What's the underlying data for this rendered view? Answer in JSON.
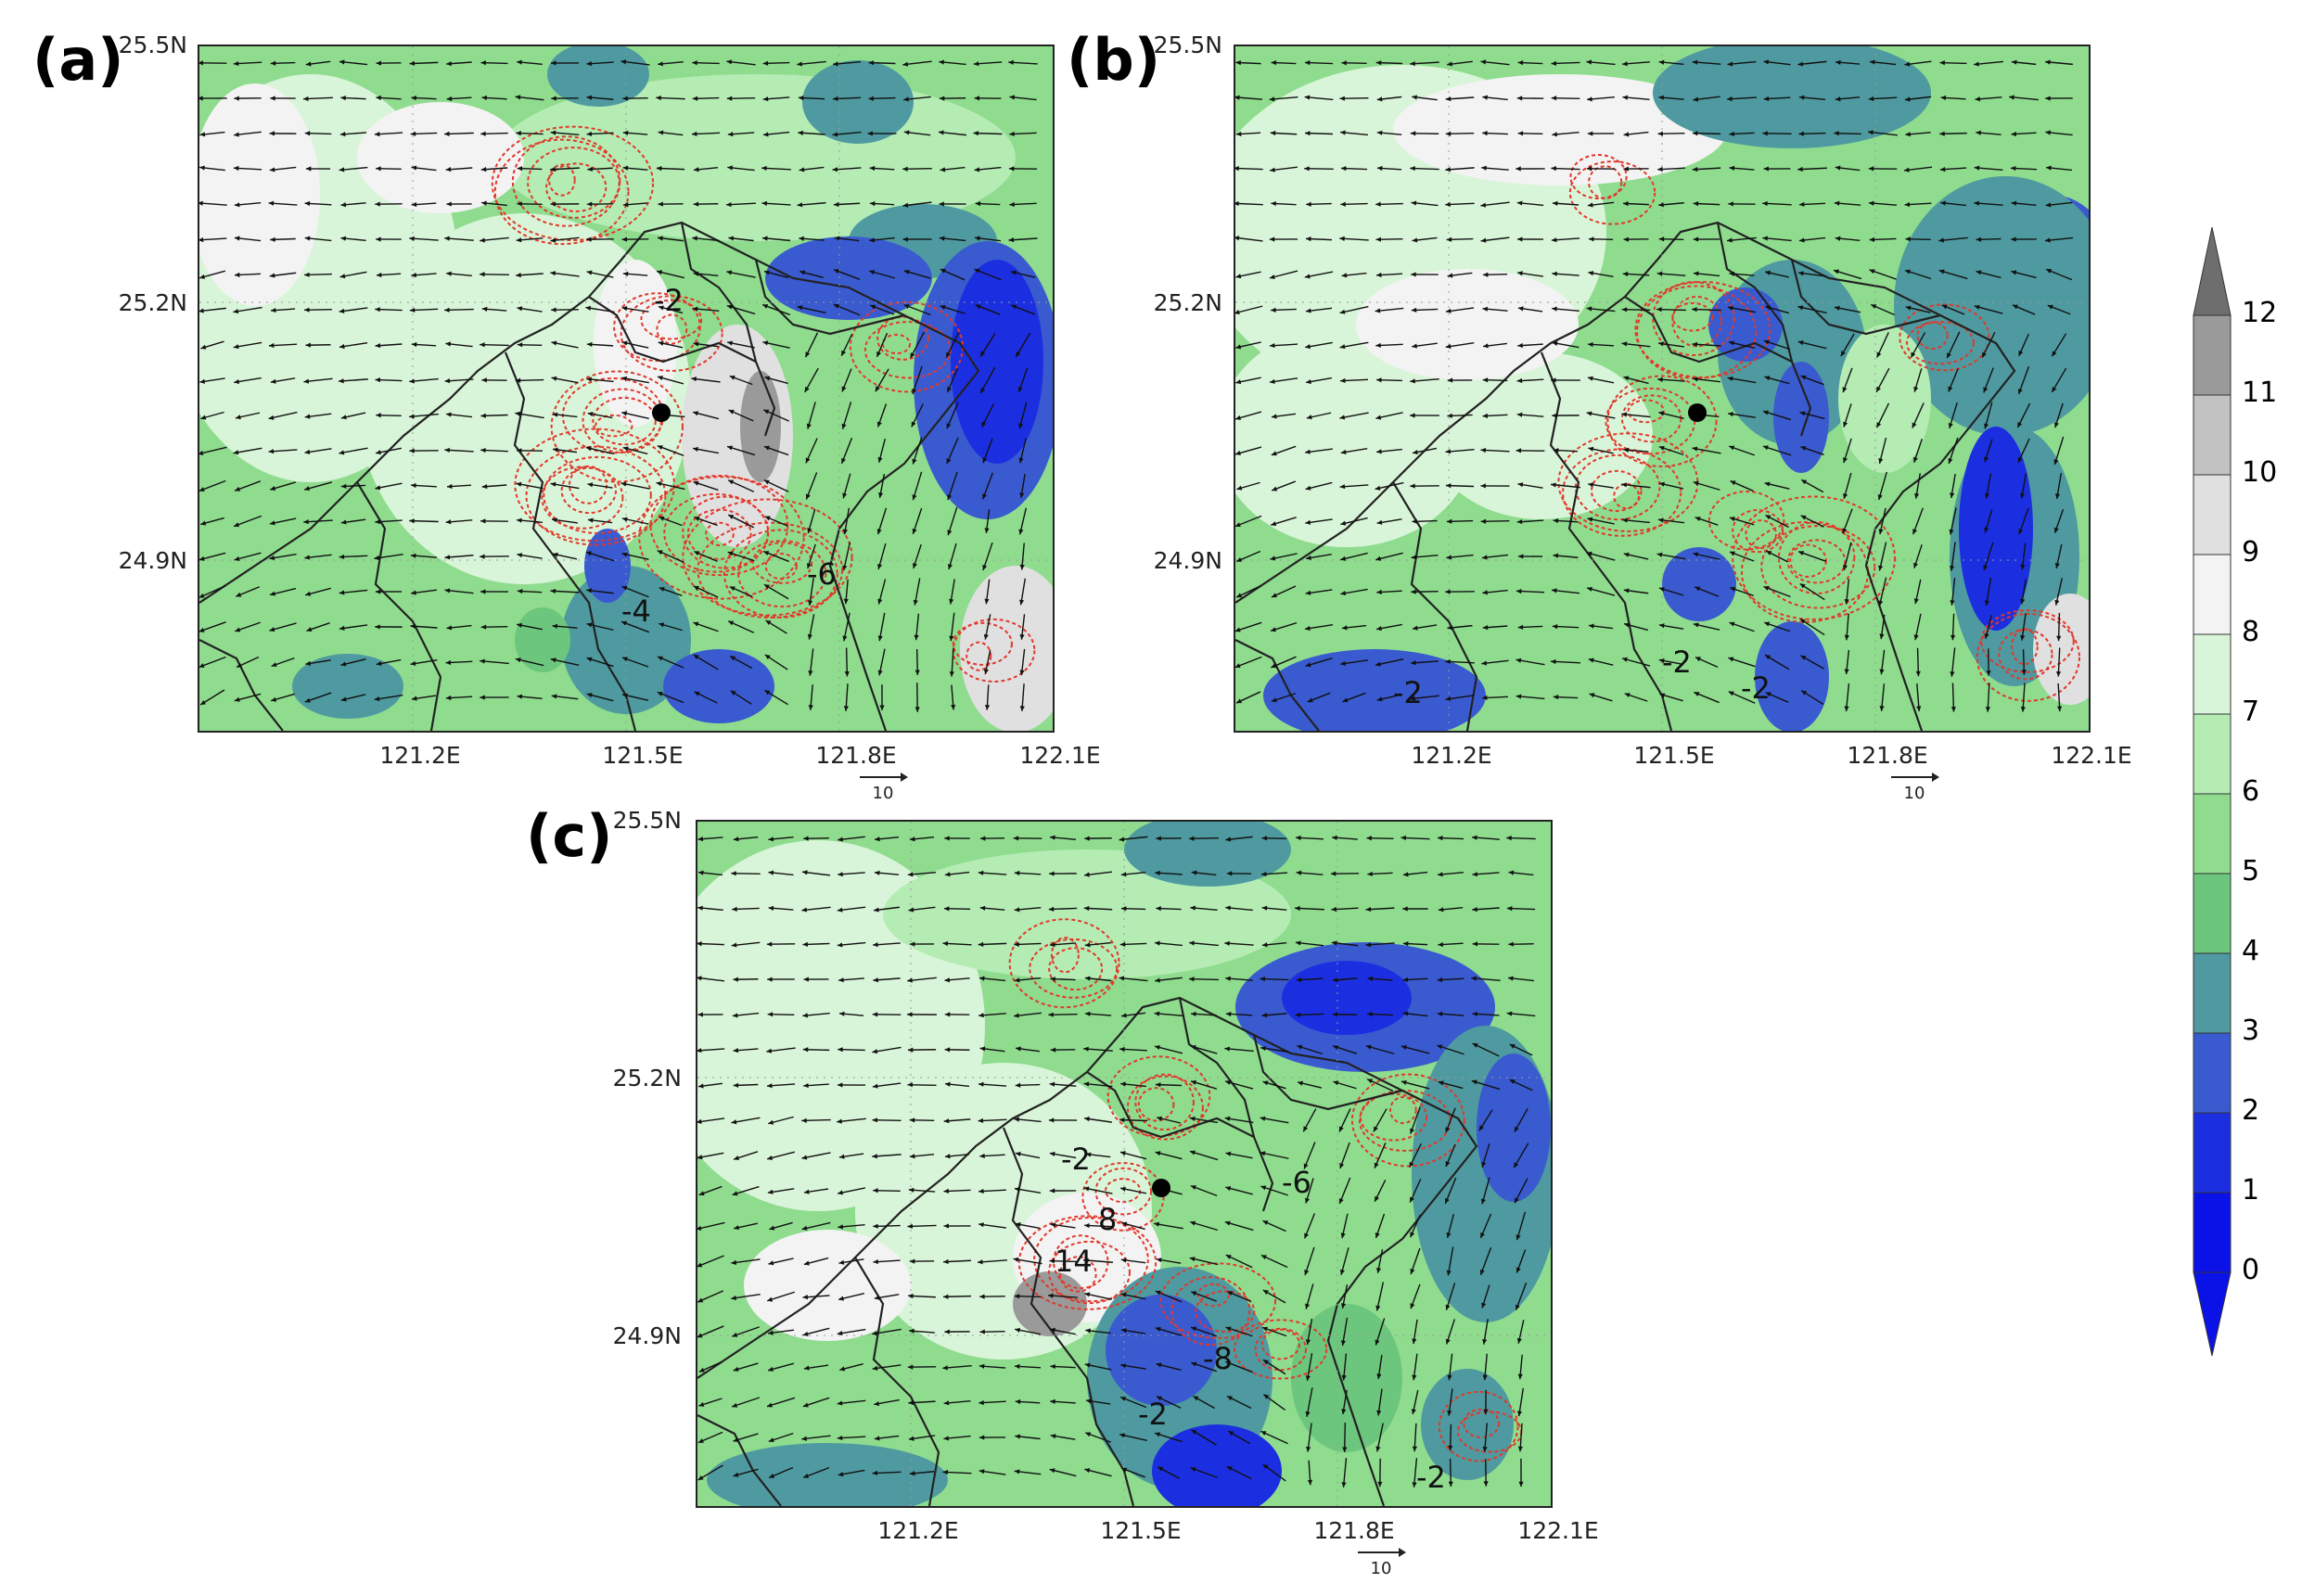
{
  "panels": [
    {
      "letter": "(a)",
      "lat_labels": [
        "25.5N",
        "25.2N",
        "24.9N"
      ],
      "lon_labels": [
        "121.2E",
        "121.5E",
        "121.8E",
        "122.1E"
      ],
      "vector_key": "10",
      "contour_labels": [
        "-2",
        "-4",
        "-6"
      ]
    },
    {
      "letter": "(b)",
      "lat_labels": [
        "25.5N",
        "25.2N",
        "24.9N"
      ],
      "lon_labels": [
        "121.2E",
        "121.5E",
        "121.8E",
        "122.1E"
      ],
      "vector_key": "10",
      "contour_labels": [
        "-2",
        "-2",
        "-2"
      ]
    },
    {
      "letter": "(c)",
      "lat_labels": [
        "25.5N",
        "25.2N",
        "24.9N"
      ],
      "lon_labels": [
        "121.2E",
        "121.5E",
        "121.8E",
        "122.1E"
      ],
      "vector_key": "10",
      "contour_labels": [
        "-2",
        "-6",
        "8",
        "14",
        "-8",
        "-2",
        "-2"
      ]
    }
  ],
  "colorbar": {
    "labels": [
      "12",
      "11",
      "10",
      "9",
      "8",
      "7",
      "6",
      "5",
      "4",
      "3",
      "2",
      "1",
      "0"
    ],
    "colors": [
      "#6e6e6e",
      "#9a9a9a",
      "#c2c2c2",
      "#e0e0e0",
      "#f3f3f3",
      "#d9f5d9",
      "#b4ecb4",
      "#8fdc8f",
      "#6dc67d",
      "#4e9aa0",
      "#3a5ad0",
      "#1c2fe0",
      "#0a12e8"
    ]
  },
  "colors": {
    "contour": "#e0392b",
    "border": "#222222",
    "station": "#000000"
  }
}
